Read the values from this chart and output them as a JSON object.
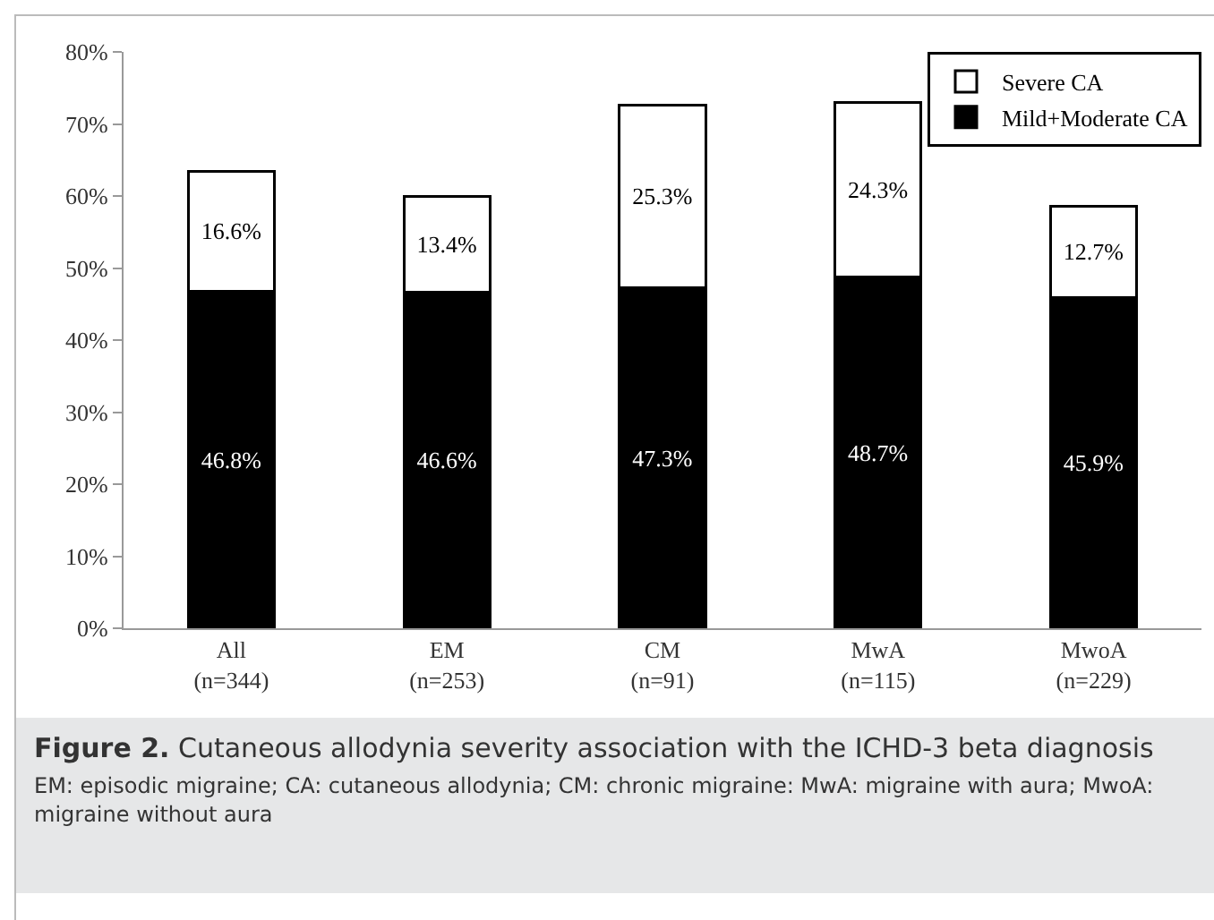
{
  "chart_data": {
    "type": "bar",
    "stacked": true,
    "title": "Figure 2. Cutaneous allodynia severity association with the ICHD-3 beta diagnosis",
    "annotations": [
      "EM: episodic migraine; CA: cutaneous allodynia; CM: chronic migraine: MwA: migraine with aura; MwoA: migraine without aura"
    ],
    "categories": [
      "All\n(n=344)",
      "EM\n(n=253)",
      "CM\n(n=91)",
      "MwA\n(n=115)",
      "MwoA\n(n=229)"
    ],
    "series": [
      {
        "name": "Mild+Moderate CA",
        "color": "#000000",
        "values": [
          46.8,
          46.6,
          47.3,
          48.7,
          45.9
        ],
        "value_labels": [
          "46.8%",
          "46.6%",
          "47.3%",
          "48.7%",
          "45.9%"
        ]
      },
      {
        "name": "Severe CA",
        "color": "#ffffff",
        "values": [
          16.6,
          13.4,
          25.3,
          24.3,
          12.7
        ],
        "value_labels": [
          "16.6%",
          "13.4%",
          "25.3%",
          "24.3%",
          "12.7%"
        ]
      }
    ],
    "ylim": [
      0,
      80
    ],
    "yticks": [
      {
        "value": 0,
        "label": "0%"
      },
      {
        "value": 10,
        "label": "10%"
      },
      {
        "value": 20,
        "label": "20%"
      },
      {
        "value": 30,
        "label": "30%"
      },
      {
        "value": 40,
        "label": "40%"
      },
      {
        "value": 50,
        "label": "50%"
      },
      {
        "value": 60,
        "label": "60%"
      },
      {
        "value": 70,
        "label": "70%"
      },
      {
        "value": 80,
        "label": "80%"
      }
    ],
    "grid": false,
    "legend": "top right"
  }
}
